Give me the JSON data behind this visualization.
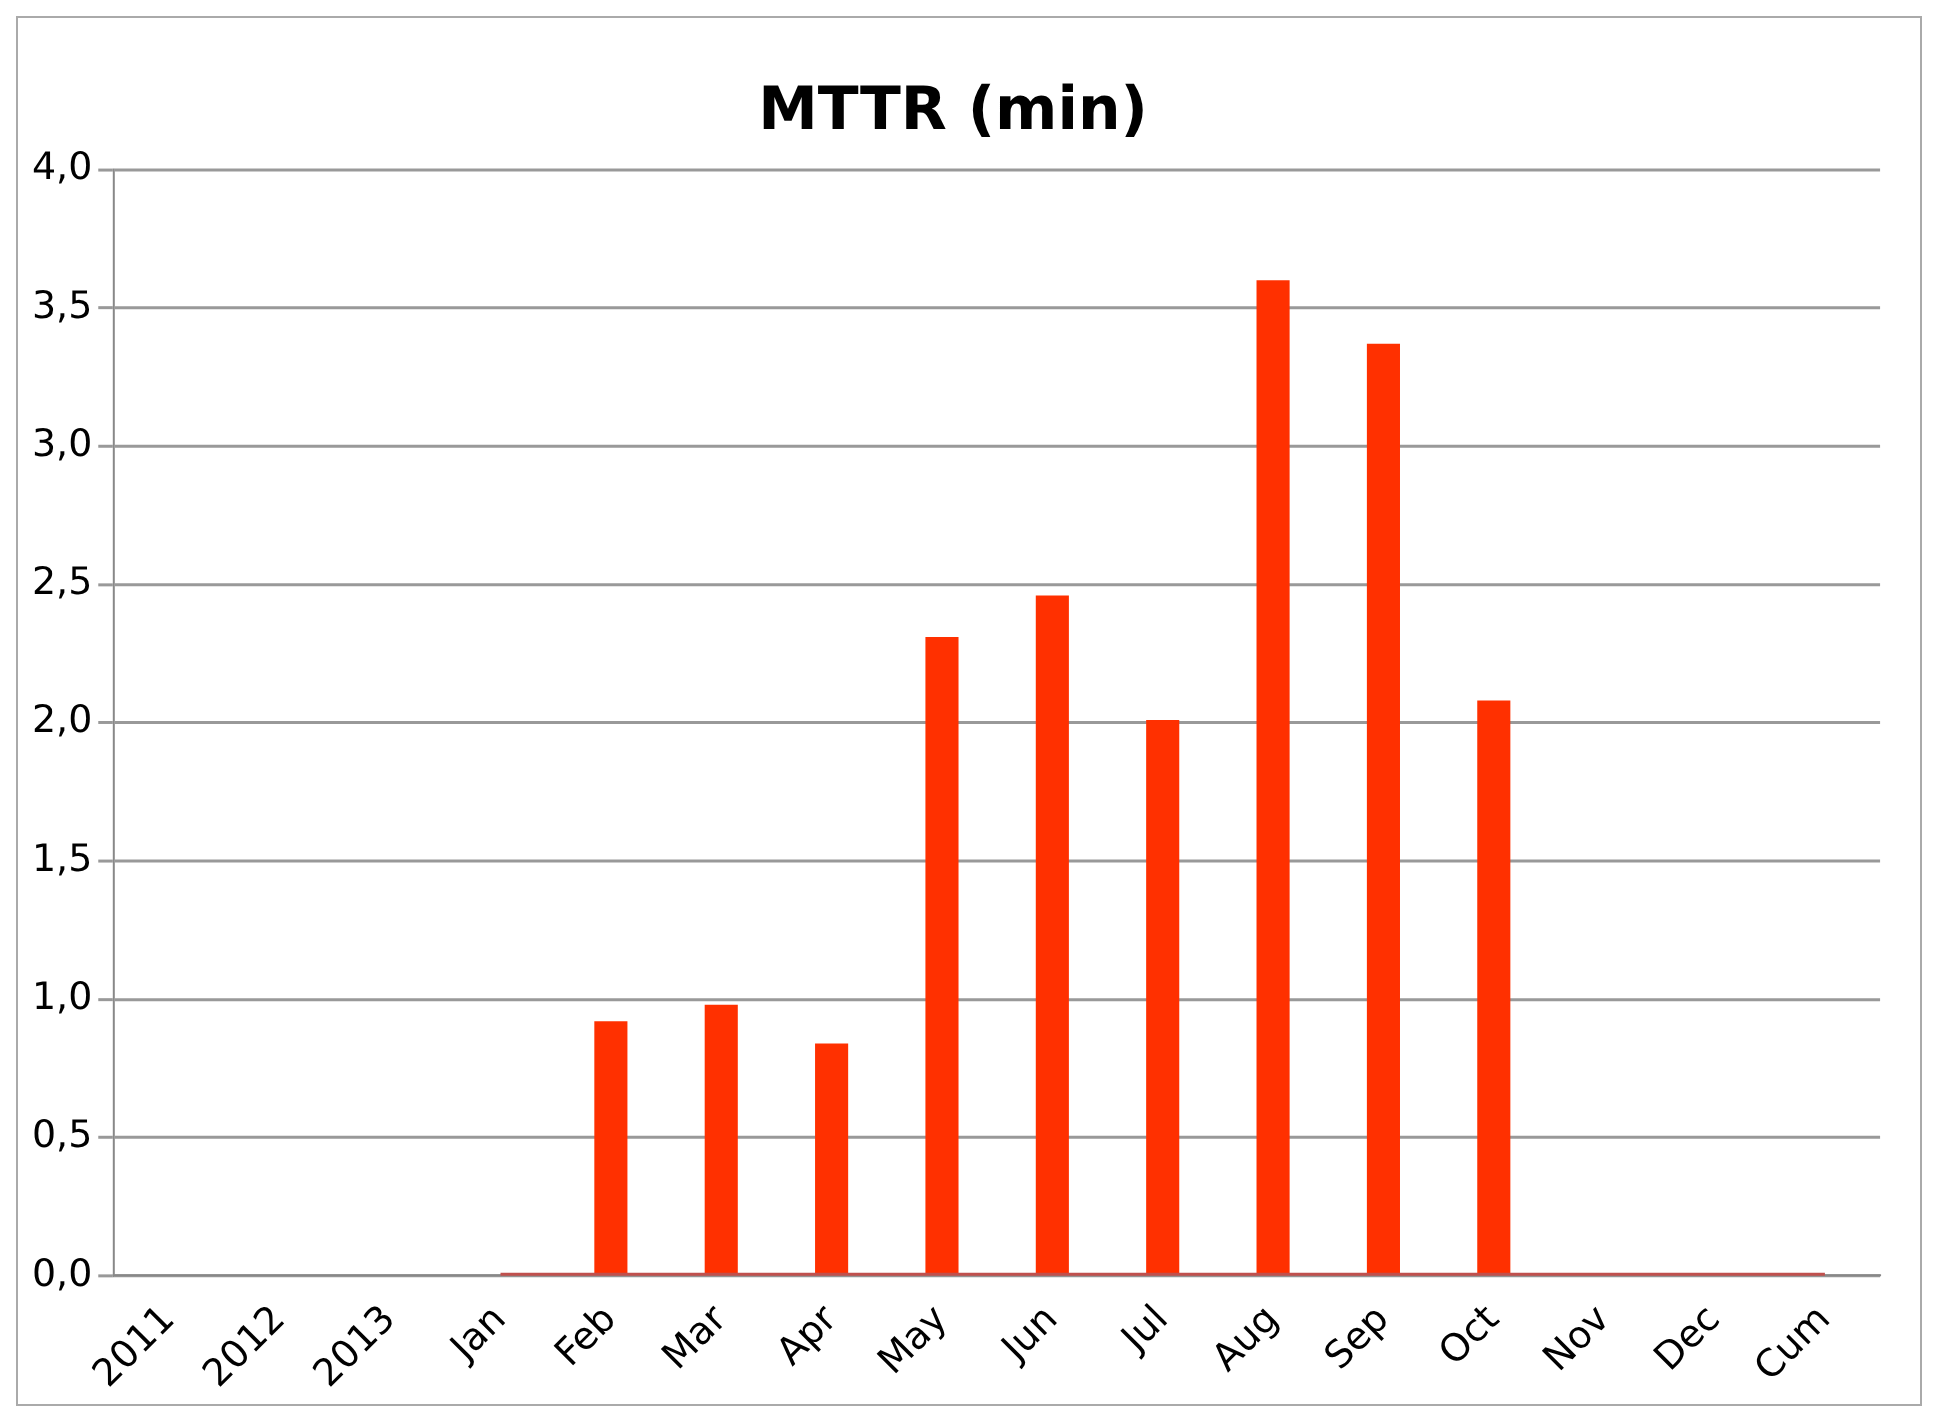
{
  "chart_data": {
    "type": "bar",
    "title": "MTTR (min)",
    "categories": [
      "2011",
      "2012",
      "2013",
      "Jan",
      "Feb",
      "Mar",
      "Apr",
      "May",
      "Jun",
      "Jul",
      "Aug",
      "Sep",
      "Oct",
      "Nov",
      "Dec",
      "Cum"
    ],
    "series": [
      {
        "color": "#ff3000",
        "values": [
          null,
          null,
          null,
          null,
          0.92,
          0.98,
          0.84,
          2.31,
          2.46,
          2.01,
          3.6,
          3.37,
          2.08,
          null,
          null,
          null
        ]
      },
      {
        "type": "line",
        "color": "#c0504d",
        "values": [
          null,
          null,
          null,
          0,
          0,
          0,
          0,
          0,
          0,
          0,
          0,
          0,
          0,
          0,
          0,
          0
        ]
      }
    ],
    "ylim": [
      0,
      4
    ],
    "yticks": [
      {
        "value": 0,
        "label": "0,0"
      },
      {
        "value": 0.5,
        "label": "0,5"
      },
      {
        "value": 1,
        "label": "1,0"
      },
      {
        "value": 1.5,
        "label": "1,5"
      },
      {
        "value": 2,
        "label": "2,0"
      },
      {
        "value": 2.5,
        "label": "2,5"
      },
      {
        "value": 3,
        "label": "3,0"
      },
      {
        "value": 3.5,
        "label": "3,5"
      },
      {
        "value": 4,
        "label": "4,0"
      }
    ],
    "grid": "y",
    "legend": false,
    "marker": "none"
  }
}
